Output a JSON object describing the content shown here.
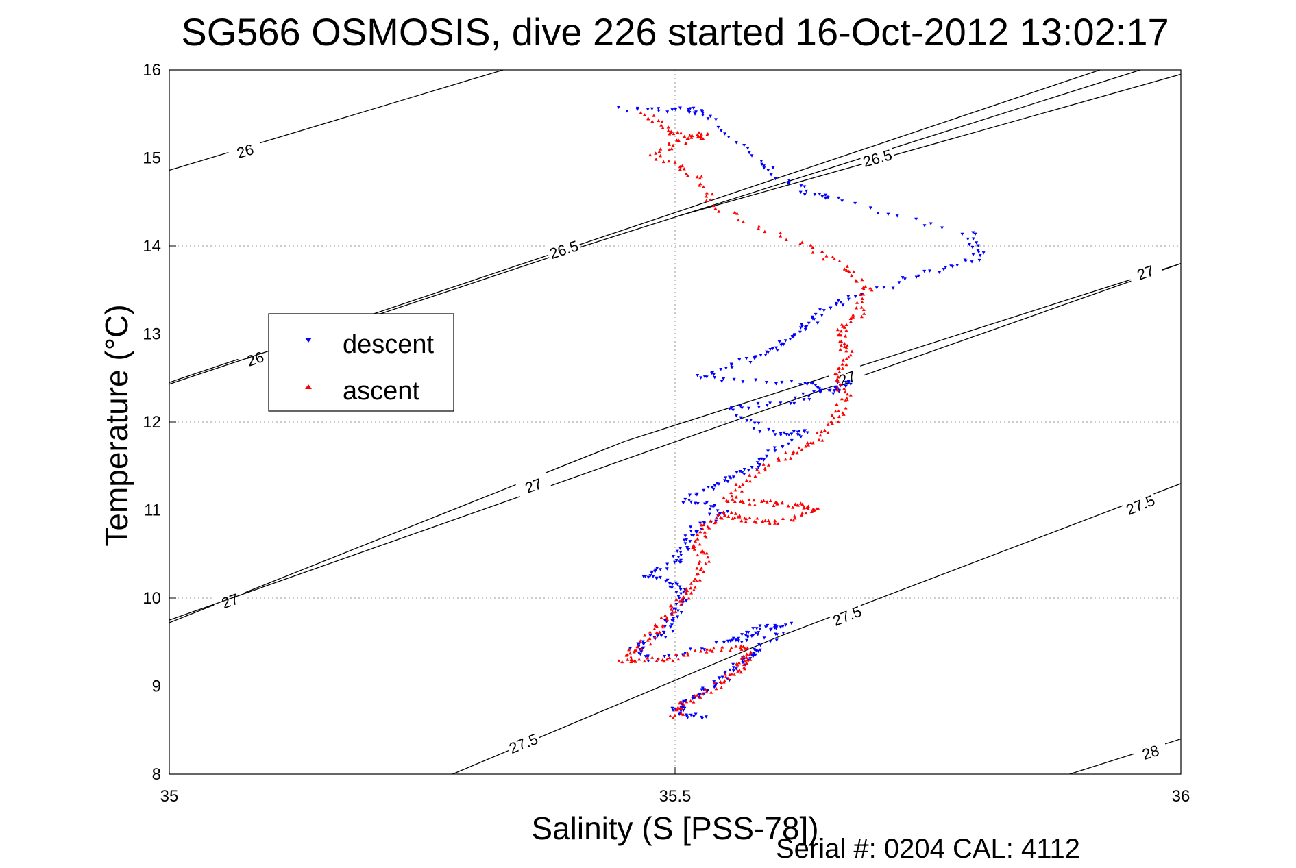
{
  "chart_data": {
    "type": "scatter",
    "title": "SG566 OSMOSIS, dive 226 started 16-Oct-2012 13:02:17",
    "xlabel": "Salinity (S [PSS-78])",
    "ylabel": "Temperature (°C)",
    "footer": "Serial #: 0204  CAL: 4112",
    "xlim": [
      35,
      36
    ],
    "ylim": [
      8,
      16
    ],
    "x_ticks": [
      "35",
      "35.5",
      "36"
    ],
    "y_ticks": [
      "8",
      "9",
      "10",
      "11",
      "12",
      "13",
      "14",
      "15",
      "16"
    ],
    "grid": true,
    "legend_position": "left-middle",
    "colors": {
      "descent": "#0000ff",
      "ascent": "#ff0000",
      "contour": "#000000"
    },
    "density_contours": [
      {
        "label": "26",
        "points": [
          [
            35.0,
            14.86
          ],
          [
            35.33,
            16.0
          ]
        ],
        "labels_at": [
          [
            35.075,
            15.08
          ]
        ]
      },
      {
        "label": "26",
        "points": [
          [
            35.0,
            12.45
          ],
          [
            35.92,
            16.0
          ]
        ],
        "labels_at": [
          [
            35.085,
            12.72
          ]
        ]
      },
      {
        "label": "26.5",
        "points": [
          [
            35.0,
            12.43
          ],
          [
            35.41,
            14.0
          ],
          [
            35.96,
            16.0
          ]
        ],
        "labels_at": [
          [
            35.39,
            13.96
          ]
        ]
      },
      {
        "label": "26.5",
        "points": [
          [
            35.5,
            14.33
          ],
          [
            36.0,
            15.95
          ]
        ],
        "labels_at": [
          [
            35.7,
            15.0
          ]
        ]
      },
      {
        "label": "27",
        "points": [
          [
            35.0,
            9.72
          ],
          [
            35.45,
            11.78
          ],
          [
            36.0,
            13.8
          ]
        ],
        "labels_at": [
          [
            35.06,
            9.97
          ]
        ]
      },
      {
        "label": "27",
        "points": [
          [
            35.0,
            9.75
          ],
          [
            36.0,
            13.8
          ]
        ],
        "labels_at": [
          [
            35.36,
            11.28
          ],
          [
            35.67,
            12.5
          ],
          [
            35.965,
            13.7
          ]
        ]
      },
      {
        "label": "27.5",
        "points": [
          [
            35.28,
            8.0
          ],
          [
            35.6,
            9.55
          ],
          [
            36.0,
            11.3
          ]
        ],
        "labels_at": [
          [
            35.35,
            8.35
          ],
          [
            35.67,
            9.8
          ],
          [
            35.96,
            11.06
          ]
        ]
      },
      {
        "label": "28",
        "points": [
          [
            35.89,
            8.0
          ],
          [
            36.0,
            8.4
          ]
        ],
        "labels_at": [
          [
            35.97,
            8.25
          ]
        ]
      }
    ],
    "series": [
      {
        "name": "descent",
        "color": "#0000ff",
        "marker": "triangle-down",
        "anchors": [
          [
            35.45,
            15.55
          ],
          [
            35.51,
            15.55
          ],
          [
            35.53,
            15.5
          ],
          [
            35.58,
            14.97
          ],
          [
            35.62,
            14.66
          ],
          [
            35.66,
            14.52
          ],
          [
            35.79,
            14.13
          ],
          [
            35.8,
            13.87
          ],
          [
            35.75,
            13.7
          ],
          [
            35.67,
            13.4
          ],
          [
            35.64,
            13.2
          ],
          [
            35.62,
            13.0
          ],
          [
            35.6,
            12.85
          ],
          [
            35.57,
            12.7
          ],
          [
            35.52,
            12.5
          ],
          [
            35.62,
            12.45
          ],
          [
            35.66,
            12.35
          ],
          [
            35.67,
            12.45
          ],
          [
            35.62,
            12.25
          ],
          [
            35.55,
            12.13
          ],
          [
            35.6,
            11.85
          ],
          [
            35.63,
            11.9
          ],
          [
            35.59,
            11.6
          ],
          [
            35.57,
            11.45
          ],
          [
            35.54,
            11.3
          ],
          [
            35.51,
            11.1
          ],
          [
            35.55,
            11.0
          ],
          [
            35.52,
            10.8
          ],
          [
            35.51,
            10.6
          ],
          [
            35.5,
            10.4
          ],
          [
            35.47,
            10.25
          ],
          [
            35.5,
            10.15
          ],
          [
            35.51,
            10.0
          ],
          [
            35.5,
            9.8
          ],
          [
            35.49,
            9.6
          ],
          [
            35.46,
            9.45
          ],
          [
            35.48,
            9.3
          ],
          [
            35.55,
            9.5
          ],
          [
            35.57,
            9.55
          ],
          [
            35.58,
            9.65
          ],
          [
            35.61,
            9.7
          ],
          [
            35.58,
            9.4
          ],
          [
            35.57,
            9.3
          ],
          [
            35.55,
            9.1
          ],
          [
            35.53,
            8.95
          ],
          [
            35.51,
            8.8
          ],
          [
            35.5,
            8.7
          ],
          [
            35.53,
            8.63
          ]
        ]
      },
      {
        "name": "ascent",
        "color": "#ff0000",
        "marker": "triangle-up",
        "anchors": [
          [
            35.5,
            8.65
          ],
          [
            35.51,
            8.8
          ],
          [
            35.54,
            9.0
          ],
          [
            35.56,
            9.15
          ],
          [
            35.57,
            9.3
          ],
          [
            35.57,
            9.45
          ],
          [
            35.53,
            9.4
          ],
          [
            35.49,
            9.3
          ],
          [
            35.45,
            9.28
          ],
          [
            35.46,
            9.4
          ],
          [
            35.48,
            9.6
          ],
          [
            35.49,
            9.8
          ],
          [
            35.51,
            10.0
          ],
          [
            35.52,
            10.15
          ],
          [
            35.53,
            10.4
          ],
          [
            35.52,
            10.6
          ],
          [
            35.53,
            10.8
          ],
          [
            35.55,
            10.95
          ],
          [
            35.57,
            10.9
          ],
          [
            35.6,
            10.85
          ],
          [
            35.64,
            11.0
          ],
          [
            35.62,
            11.05
          ],
          [
            35.59,
            11.08
          ],
          [
            35.55,
            11.1
          ],
          [
            35.57,
            11.35
          ],
          [
            35.61,
            11.6
          ],
          [
            35.64,
            11.8
          ],
          [
            35.66,
            12.05
          ],
          [
            35.67,
            12.3
          ],
          [
            35.66,
            12.55
          ],
          [
            35.67,
            12.8
          ],
          [
            35.66,
            13.0
          ],
          [
            35.68,
            13.2
          ],
          [
            35.69,
            13.5
          ],
          [
            35.67,
            13.75
          ],
          [
            35.62,
            14.05
          ],
          [
            35.54,
            14.45
          ],
          [
            35.52,
            14.8
          ],
          [
            35.48,
            15.05
          ],
          [
            35.51,
            15.22
          ],
          [
            35.53,
            15.25
          ],
          [
            35.49,
            15.3
          ],
          [
            35.47,
            15.55
          ]
        ]
      }
    ]
  }
}
